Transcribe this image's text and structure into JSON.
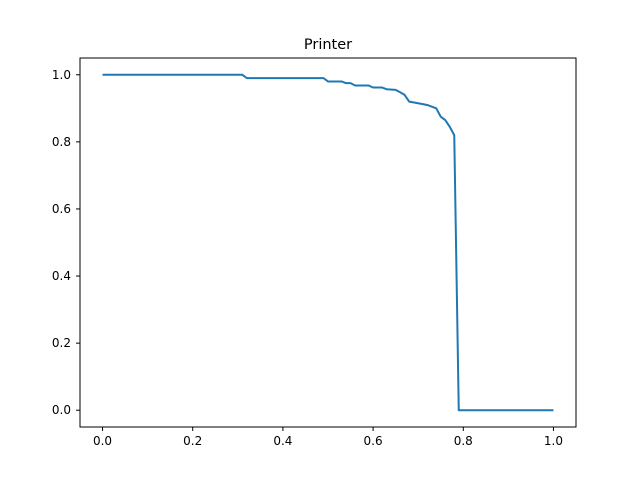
{
  "chart_data": {
    "type": "line",
    "title": "Printer",
    "xlabel": "",
    "ylabel": "",
    "xlim": [
      -0.05,
      1.05
    ],
    "ylim": [
      -0.05,
      1.05
    ],
    "xticks": [
      0.0,
      0.2,
      0.4,
      0.6,
      0.8,
      1.0
    ],
    "xtick_labels": [
      "0.0",
      "0.2",
      "0.4",
      "0.6",
      "0.8",
      "1.0"
    ],
    "yticks": [
      0.0,
      0.2,
      0.4,
      0.6,
      0.8,
      1.0
    ],
    "ytick_labels": [
      "0.0",
      "0.2",
      "0.4",
      "0.6",
      "0.8",
      "1.0"
    ],
    "grid": false,
    "legend": "none",
    "series": [
      {
        "color": "#1f77b4",
        "x": [
          0.0,
          0.3,
          0.31,
          0.32,
          0.49,
          0.5,
          0.53,
          0.54,
          0.55,
          0.56,
          0.59,
          0.6,
          0.62,
          0.63,
          0.65,
          0.66,
          0.67,
          0.68,
          0.7,
          0.72,
          0.74,
          0.75,
          0.76,
          0.77,
          0.78,
          0.79,
          1.0
        ],
        "y": [
          1.0,
          1.0,
          1.0,
          0.99,
          0.99,
          0.98,
          0.98,
          0.975,
          0.975,
          0.968,
          0.968,
          0.962,
          0.962,
          0.957,
          0.955,
          0.948,
          0.94,
          0.92,
          0.915,
          0.91,
          0.9,
          0.875,
          0.865,
          0.845,
          0.82,
          0.0,
          0.0
        ]
      }
    ]
  }
}
